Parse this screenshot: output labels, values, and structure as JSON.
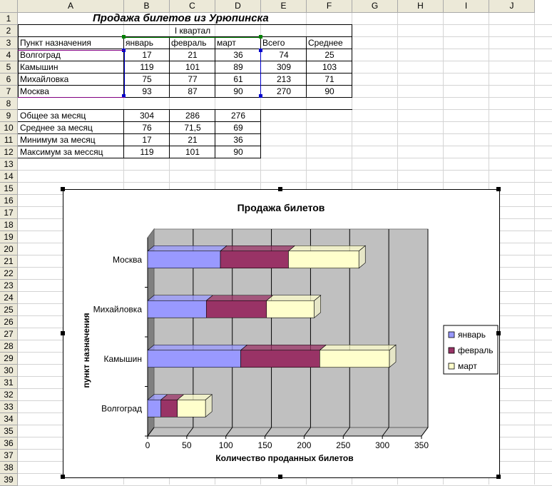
{
  "columns": [
    "A",
    "B",
    "C",
    "D",
    "E",
    "F",
    "G",
    "H",
    "I",
    "J"
  ],
  "rows": [
    "1",
    "2",
    "3",
    "4",
    "5",
    "6",
    "7",
    "8",
    "9",
    "10",
    "11",
    "12",
    "13",
    "14",
    "15",
    "16",
    "17",
    "18",
    "19",
    "20",
    "21",
    "22",
    "23",
    "24",
    "25",
    "26",
    "27",
    "28",
    "29",
    "30",
    "31",
    "32",
    "33",
    "34",
    "35",
    "36",
    "37",
    "38",
    "39"
  ],
  "sheet": {
    "title": "Продажа билетов из Урюпинска",
    "quarter": "I квартал",
    "headers": [
      "Пункт назначения",
      "январь",
      "февраль",
      "март",
      "Всего",
      "Среднее"
    ],
    "data": [
      [
        "Волгоград",
        "17",
        "21",
        "36",
        "74",
        "25"
      ],
      [
        "Камышин",
        "119",
        "101",
        "89",
        "309",
        "103"
      ],
      [
        "Михайловка",
        "75",
        "77",
        "61",
        "213",
        "71"
      ],
      [
        "Москва",
        "93",
        "87",
        "90",
        "270",
        "90"
      ]
    ],
    "summary": [
      [
        "Общее за месяц",
        "304",
        "286",
        "276"
      ],
      [
        "Среднее за месяц",
        "76",
        "71,5",
        "69"
      ],
      [
        "Минимум за месяц",
        "17",
        "21",
        "36"
      ],
      [
        "Максимум за мессяц",
        "119",
        "101",
        "90"
      ]
    ]
  },
  "chart_data": {
    "type": "bar",
    "orientation": "horizontal",
    "stacked": true,
    "three_d": true,
    "title": "Продажа билетов",
    "xlabel": "Количество проданных билетов",
    "ylabel": "пункт назначения",
    "categories": [
      "Волгоград",
      "Камышин",
      "Михайловка",
      "Москва"
    ],
    "series": [
      {
        "name": "январь",
        "values": [
          17,
          119,
          75,
          93
        ],
        "color": "#9999ff"
      },
      {
        "name": "февраль",
        "values": [
          21,
          101,
          77,
          87
        ],
        "color": "#993366"
      },
      {
        "name": "март",
        "values": [
          36,
          89,
          61,
          90
        ],
        "color": "#ffffcc"
      }
    ],
    "xlim": [
      0,
      350
    ],
    "xticks": [
      "0",
      "50",
      "100",
      "150",
      "200",
      "250",
      "300",
      "350"
    ],
    "legend": "right"
  }
}
